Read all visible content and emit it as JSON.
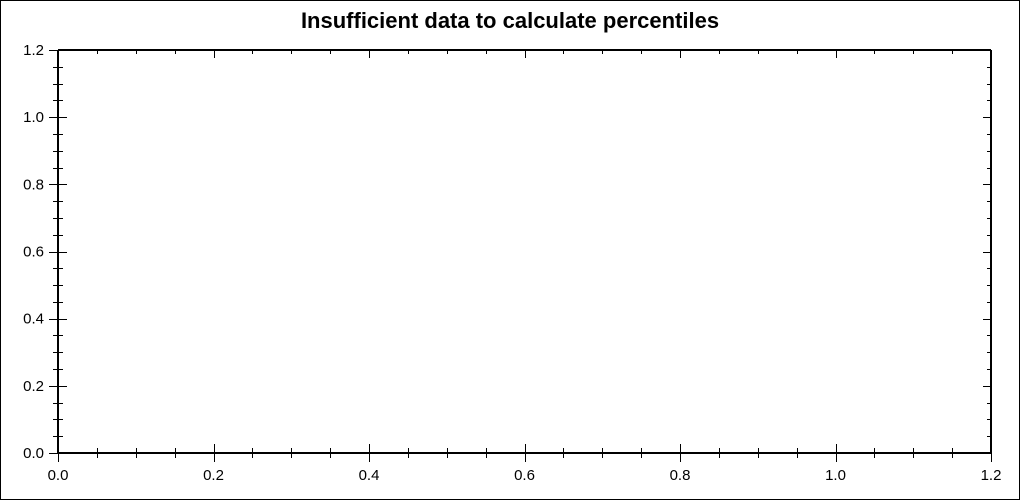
{
  "title": "Insufficient data to calculate percentiles",
  "chart_data": {
    "type": "scatter",
    "title": "Insufficient data to calculate percentiles",
    "series": [],
    "points": [],
    "xlabel": "",
    "ylabel": "",
    "xlim": [
      0.0,
      1.2
    ],
    "ylim": [
      0.0,
      1.2
    ],
    "x_major_ticks": [
      0.0,
      0.2,
      0.4,
      0.6,
      0.8,
      1.0,
      1.2
    ],
    "y_major_ticks": [
      0.0,
      0.2,
      0.4,
      0.6,
      0.8,
      1.0,
      1.2
    ],
    "x_tick_labels": [
      "0.0",
      "0.2",
      "0.4",
      "0.6",
      "0.8",
      "1.0",
      "1.2"
    ],
    "y_tick_labels": [
      "0.0",
      "0.2",
      "0.4",
      "0.6",
      "0.8",
      "1.0",
      "1.2"
    ],
    "minor_tick_step": 0.05,
    "grid": false,
    "legend_position": "none",
    "frame": "box",
    "axis_color": "#000000",
    "text_color": "#000000",
    "background_color": "#ffffff",
    "border_color": "#000000"
  }
}
